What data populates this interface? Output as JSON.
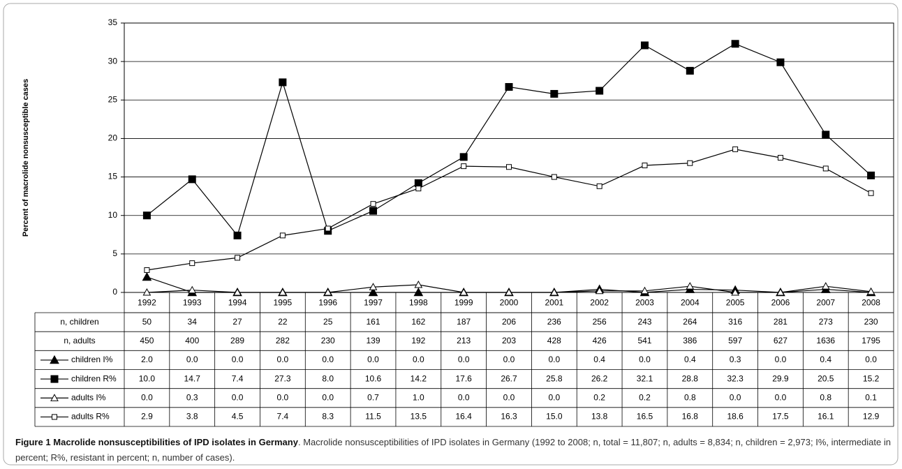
{
  "chart_data": {
    "type": "line",
    "ylabel": "Percent of macrolide nonsusceptible cases",
    "categories": [
      "1992",
      "1993",
      "1994",
      "1995",
      "1996",
      "1997",
      "1998",
      "1999",
      "2000",
      "2001",
      "2002",
      "2003",
      "2004",
      "2005",
      "2006",
      "2007",
      "2008"
    ],
    "ylim": [
      0,
      35
    ],
    "yticks": [
      0,
      5,
      10,
      15,
      20,
      25,
      30,
      35
    ],
    "grid": true,
    "table_rows": [
      {
        "name": "n, children",
        "values": [
          50,
          34,
          27,
          22,
          25,
          161,
          162,
          187,
          206,
          236,
          256,
          243,
          264,
          316,
          281,
          273,
          230
        ]
      },
      {
        "name": "n, adults",
        "values": [
          450,
          400,
          289,
          282,
          230,
          139,
          192,
          213,
          203,
          428,
          426,
          541,
          386,
          597,
          627,
          1636,
          1795
        ]
      }
    ],
    "series": [
      {
        "name": "children I%",
        "color": "#000000",
        "marker": "filled-triangle",
        "values": [
          2.0,
          0.0,
          0.0,
          0.0,
          0.0,
          0.0,
          0.0,
          0.0,
          0.0,
          0.0,
          0.4,
          0.0,
          0.4,
          0.3,
          0.0,
          0.4,
          0.0
        ],
        "value_labels": [
          "2.0",
          "0.0",
          "0.0",
          "0.0",
          "0.0",
          "0.0",
          "0.0",
          "0.0",
          "0.0",
          "0.0",
          "0.4",
          "0.0",
          "0.4",
          "0.3",
          "0.0",
          "0.4",
          "0.0"
        ]
      },
      {
        "name": "children R%",
        "color": "#000000",
        "marker": "filled-square",
        "values": [
          10.0,
          14.7,
          7.4,
          27.3,
          8.0,
          10.6,
          14.2,
          17.6,
          26.7,
          25.8,
          26.2,
          32.1,
          28.8,
          32.3,
          29.9,
          20.5,
          15.2
        ],
        "value_labels": [
          "10.0",
          "14.7",
          "7.4",
          "27.3",
          "8.0",
          "10.6",
          "14.2",
          "17.6",
          "26.7",
          "25.8",
          "26.2",
          "32.1",
          "28.8",
          "32.3",
          "29.9",
          "20.5",
          "15.2"
        ]
      },
      {
        "name": "adults I%",
        "color": "#000000",
        "marker": "open-triangle",
        "values": [
          0.0,
          0.3,
          0.0,
          0.0,
          0.0,
          0.7,
          1.0,
          0.0,
          0.0,
          0.0,
          0.2,
          0.2,
          0.8,
          0.0,
          0.0,
          0.8,
          0.1
        ],
        "value_labels": [
          "0.0",
          "0.3",
          "0.0",
          "0.0",
          "0.0",
          "0.7",
          "1.0",
          "0.0",
          "0.0",
          "0.0",
          "0.2",
          "0.2",
          "0.8",
          "0.0",
          "0.0",
          "0.8",
          "0.1"
        ]
      },
      {
        "name": "adults R%",
        "color": "#000000",
        "marker": "open-square",
        "values": [
          2.9,
          3.8,
          4.5,
          7.4,
          8.3,
          11.5,
          13.5,
          16.4,
          16.3,
          15.0,
          13.8,
          16.5,
          16.8,
          18.6,
          17.5,
          16.1,
          12.9
        ],
        "value_labels": [
          "2.9",
          "3.8",
          "4.5",
          "7.4",
          "8.3",
          "11.5",
          "13.5",
          "16.4",
          "16.3",
          "15.0",
          "13.8",
          "16.5",
          "16.8",
          "18.6",
          "17.5",
          "16.1",
          "12.9"
        ]
      }
    ]
  },
  "caption": {
    "label": "Figure 1 Macrolide nonsusceptibilities of IPD isolates in Germany",
    "text": ". Macrolide nonsusceptibilities of IPD isolates in Germany (1992 to 2008; n, total = 11,807; n, adults = 8,834; n, children = 2,973; I%, intermediate in percent; R%, resistant in percent; n, number of cases)."
  }
}
